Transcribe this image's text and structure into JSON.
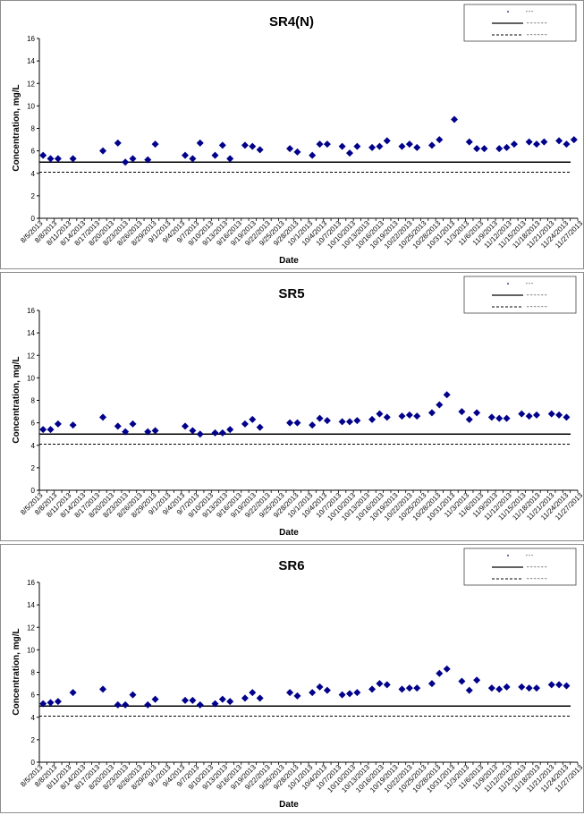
{
  "chart_data": [
    {
      "type": "scatter",
      "title": "SR4(N)",
      "xlabel": "Date",
      "ylabel": "Concentration, mg/L",
      "ylim": [
        0,
        16
      ],
      "yticks": [
        0,
        2,
        4,
        6,
        8,
        10,
        12,
        14,
        16
      ],
      "x_tick_labels": [
        "8/5/2013",
        "8/8/2013",
        "8/11/2013",
        "8/14/2013",
        "8/17/2013",
        "8/20/2013",
        "8/23/2013",
        "8/26/2013",
        "8/29/2013",
        "9/1/2013",
        "9/4/2013",
        "9/7/2013",
        "9/10/2013",
        "9/13/2013",
        "9/16/2013",
        "9/19/2013",
        "9/22/2013",
        "9/25/2013",
        "9/28/2013",
        "10/1/2013",
        "10/4/2013",
        "10/7/2013",
        "10/10/2013",
        "10/13/2013",
        "10/16/2013",
        "10/19/2013",
        "10/22/2013",
        "10/25/2013",
        "10/28/2013",
        "10/31/2013",
        "11/3/2013",
        "11/6/2013",
        "11/9/2013",
        "11/12/2013",
        "11/15/2013",
        "11/18/2013",
        "11/21/2013",
        "11/24/2013",
        "11/27/2013"
      ],
      "grid": false,
      "legend_position": "top-right",
      "series": [
        {
          "marker": "diamond",
          "color": "#00008b",
          "points": [
            [
              0,
              5.6
            ],
            [
              1,
              5.3
            ],
            [
              2,
              5.3
            ],
            [
              4,
              5.3
            ],
            [
              8,
              6.0
            ],
            [
              10,
              6.7
            ],
            [
              11,
              5.0
            ],
            [
              12,
              5.3
            ],
            [
              14,
              5.2
            ],
            [
              15,
              6.6
            ],
            [
              19,
              5.6
            ],
            [
              20,
              5.3
            ],
            [
              21,
              6.7
            ],
            [
              23,
              5.6
            ],
            [
              24,
              6.5
            ],
            [
              25,
              5.3
            ],
            [
              27,
              6.5
            ],
            [
              28,
              6.4
            ],
            [
              29,
              6.1
            ],
            [
              33,
              6.2
            ],
            [
              34,
              5.9
            ],
            [
              36,
              5.6
            ],
            [
              37,
              6.6
            ],
            [
              38,
              6.6
            ],
            [
              40,
              6.4
            ],
            [
              41,
              5.8
            ],
            [
              42,
              6.4
            ],
            [
              44,
              6.3
            ],
            [
              45,
              6.4
            ],
            [
              46,
              6.9
            ],
            [
              48,
              6.4
            ],
            [
              49,
              6.6
            ],
            [
              50,
              6.3
            ],
            [
              52,
              6.5
            ],
            [
              53,
              7.0
            ],
            [
              55,
              8.8
            ],
            [
              57,
              6.8
            ],
            [
              58,
              6.2
            ],
            [
              59,
              6.2
            ],
            [
              61,
              6.2
            ],
            [
              62,
              6.3
            ],
            [
              63,
              6.6
            ],
            [
              65,
              6.8
            ],
            [
              66,
              6.6
            ],
            [
              67,
              6.8
            ],
            [
              69,
              6.9
            ],
            [
              70,
              6.6
            ],
            [
              71,
              7.0
            ]
          ]
        },
        {
          "style": "solid",
          "color": "#000000",
          "value": 5.0
        },
        {
          "style": "dashed",
          "color": "#000000",
          "value": 4.1
        }
      ]
    },
    {
      "type": "scatter",
      "title": "SR5",
      "xlabel": "Date",
      "ylabel": "Concentration, mg/L",
      "ylim": [
        0,
        16
      ],
      "yticks": [
        0,
        2,
        4,
        6,
        8,
        10,
        12,
        14,
        16
      ],
      "x_tick_labels": [
        "8/5/2013",
        "8/8/2013",
        "8/11/2013",
        "8/14/2013",
        "8/17/2013",
        "8/20/2013",
        "8/23/2013",
        "8/26/2013",
        "8/29/2013",
        "9/1/2013",
        "9/4/2013",
        "9/7/2013",
        "9/10/2013",
        "9/13/2013",
        "9/16/2013",
        "9/19/2013",
        "9/22/2013",
        "9/25/2013",
        "9/28/2013",
        "10/1/2013",
        "10/4/2013",
        "10/7/2013",
        "10/10/2013",
        "10/13/2013",
        "10/16/2013",
        "10/19/2013",
        "10/22/2013",
        "10/25/2013",
        "10/28/2013",
        "10/31/2013",
        "11/3/2013",
        "11/6/2013",
        "11/9/2013",
        "11/12/2013",
        "11/15/2013",
        "11/18/2013",
        "11/21/2013",
        "11/24/2013",
        "11/27/2013"
      ],
      "grid": false,
      "legend_position": "top-right",
      "series": [
        {
          "marker": "diamond",
          "color": "#00008b",
          "points": [
            [
              0,
              5.4
            ],
            [
              1,
              5.4
            ],
            [
              2,
              5.9
            ],
            [
              4,
              5.8
            ],
            [
              8,
              6.5
            ],
            [
              10,
              5.7
            ],
            [
              11,
              5.2
            ],
            [
              12,
              5.9
            ],
            [
              14,
              5.2
            ],
            [
              15,
              5.3
            ],
            [
              19,
              5.7
            ],
            [
              20,
              5.3
            ],
            [
              21,
              5.0
            ],
            [
              23,
              5.1
            ],
            [
              24,
              5.1
            ],
            [
              25,
              5.4
            ],
            [
              27,
              5.9
            ],
            [
              28,
              6.3
            ],
            [
              29,
              5.6
            ],
            [
              33,
              6.0
            ],
            [
              34,
              6.0
            ],
            [
              36,
              5.8
            ],
            [
              37,
              6.4
            ],
            [
              38,
              6.2
            ],
            [
              40,
              6.1
            ],
            [
              41,
              6.1
            ],
            [
              42,
              6.2
            ],
            [
              44,
              6.3
            ],
            [
              45,
              6.8
            ],
            [
              46,
              6.5
            ],
            [
              48,
              6.6
            ],
            [
              49,
              6.7
            ],
            [
              50,
              6.6
            ],
            [
              52,
              6.9
            ],
            [
              53,
              7.6
            ],
            [
              54,
              8.5
            ],
            [
              56,
              7.0
            ],
            [
              57,
              6.3
            ],
            [
              58,
              6.9
            ],
            [
              60,
              6.5
            ],
            [
              61,
              6.4
            ],
            [
              62,
              6.4
            ],
            [
              64,
              6.8
            ],
            [
              65,
              6.6
            ],
            [
              66,
              6.7
            ],
            [
              68,
              6.8
            ],
            [
              69,
              6.7
            ],
            [
              70,
              6.5
            ]
          ]
        },
        {
          "style": "solid",
          "color": "#000000",
          "value": 5.0
        },
        {
          "style": "dashed",
          "color": "#000000",
          "value": 4.1
        }
      ]
    },
    {
      "type": "scatter",
      "title": "SR6",
      "xlabel": "Date",
      "ylabel": "Concentration, mg/L",
      "ylim": [
        0,
        16
      ],
      "yticks": [
        0,
        2,
        4,
        6,
        8,
        10,
        12,
        14,
        16
      ],
      "x_tick_labels": [
        "8/5/2013",
        "8/8/2013",
        "8/11/2013",
        "8/14/2013",
        "8/17/2013",
        "8/20/2013",
        "8/23/2013",
        "8/26/2013",
        "8/29/2013",
        "9/1/2013",
        "9/4/2013",
        "9/7/2013",
        "9/10/2013",
        "9/13/2013",
        "9/16/2013",
        "9/19/2013",
        "9/22/2013",
        "9/25/2013",
        "9/28/2013",
        "10/1/2013",
        "10/4/2013",
        "10/7/2013",
        "10/10/2013",
        "10/13/2013",
        "10/16/2013",
        "10/19/2013",
        "10/22/2013",
        "10/25/2013",
        "10/28/2013",
        "10/31/2013",
        "11/3/2013",
        "11/6/2013",
        "11/9/2013",
        "11/12/2013",
        "11/15/2013",
        "11/18/2013",
        "11/21/2013",
        "11/24/2013",
        "11/27/2013"
      ],
      "grid": false,
      "legend_position": "top-right",
      "series": [
        {
          "marker": "diamond",
          "color": "#00008b",
          "points": [
            [
              0,
              5.2
            ],
            [
              1,
              5.3
            ],
            [
              2,
              5.4
            ],
            [
              4,
              6.2
            ],
            [
              8,
              6.5
            ],
            [
              10,
              5.1
            ],
            [
              11,
              5.1
            ],
            [
              12,
              6.0
            ],
            [
              14,
              5.1
            ],
            [
              15,
              5.6
            ],
            [
              19,
              5.5
            ],
            [
              20,
              5.5
            ],
            [
              21,
              5.1
            ],
            [
              23,
              5.2
            ],
            [
              24,
              5.6
            ],
            [
              25,
              5.4
            ],
            [
              27,
              5.7
            ],
            [
              28,
              6.2
            ],
            [
              29,
              5.7
            ],
            [
              33,
              6.2
            ],
            [
              34,
              5.9
            ],
            [
              36,
              6.2
            ],
            [
              37,
              6.7
            ],
            [
              38,
              6.4
            ],
            [
              40,
              6.0
            ],
            [
              41,
              6.1
            ],
            [
              42,
              6.2
            ],
            [
              44,
              6.5
            ],
            [
              45,
              7.0
            ],
            [
              46,
              6.9
            ],
            [
              48,
              6.5
            ],
            [
              49,
              6.6
            ],
            [
              50,
              6.6
            ],
            [
              52,
              7.0
            ],
            [
              53,
              7.9
            ],
            [
              54,
              8.3
            ],
            [
              56,
              7.2
            ],
            [
              57,
              6.4
            ],
            [
              58,
              7.3
            ],
            [
              60,
              6.6
            ],
            [
              61,
              6.5
            ],
            [
              62,
              6.7
            ],
            [
              64,
              6.7
            ],
            [
              65,
              6.6
            ],
            [
              66,
              6.6
            ],
            [
              68,
              6.9
            ],
            [
              69,
              6.9
            ],
            [
              70,
              6.8
            ]
          ]
        },
        {
          "style": "solid",
          "color": "#000000",
          "value": 5.0
        },
        {
          "style": "dashed",
          "color": "#000000",
          "value": 4.1
        }
      ]
    }
  ]
}
